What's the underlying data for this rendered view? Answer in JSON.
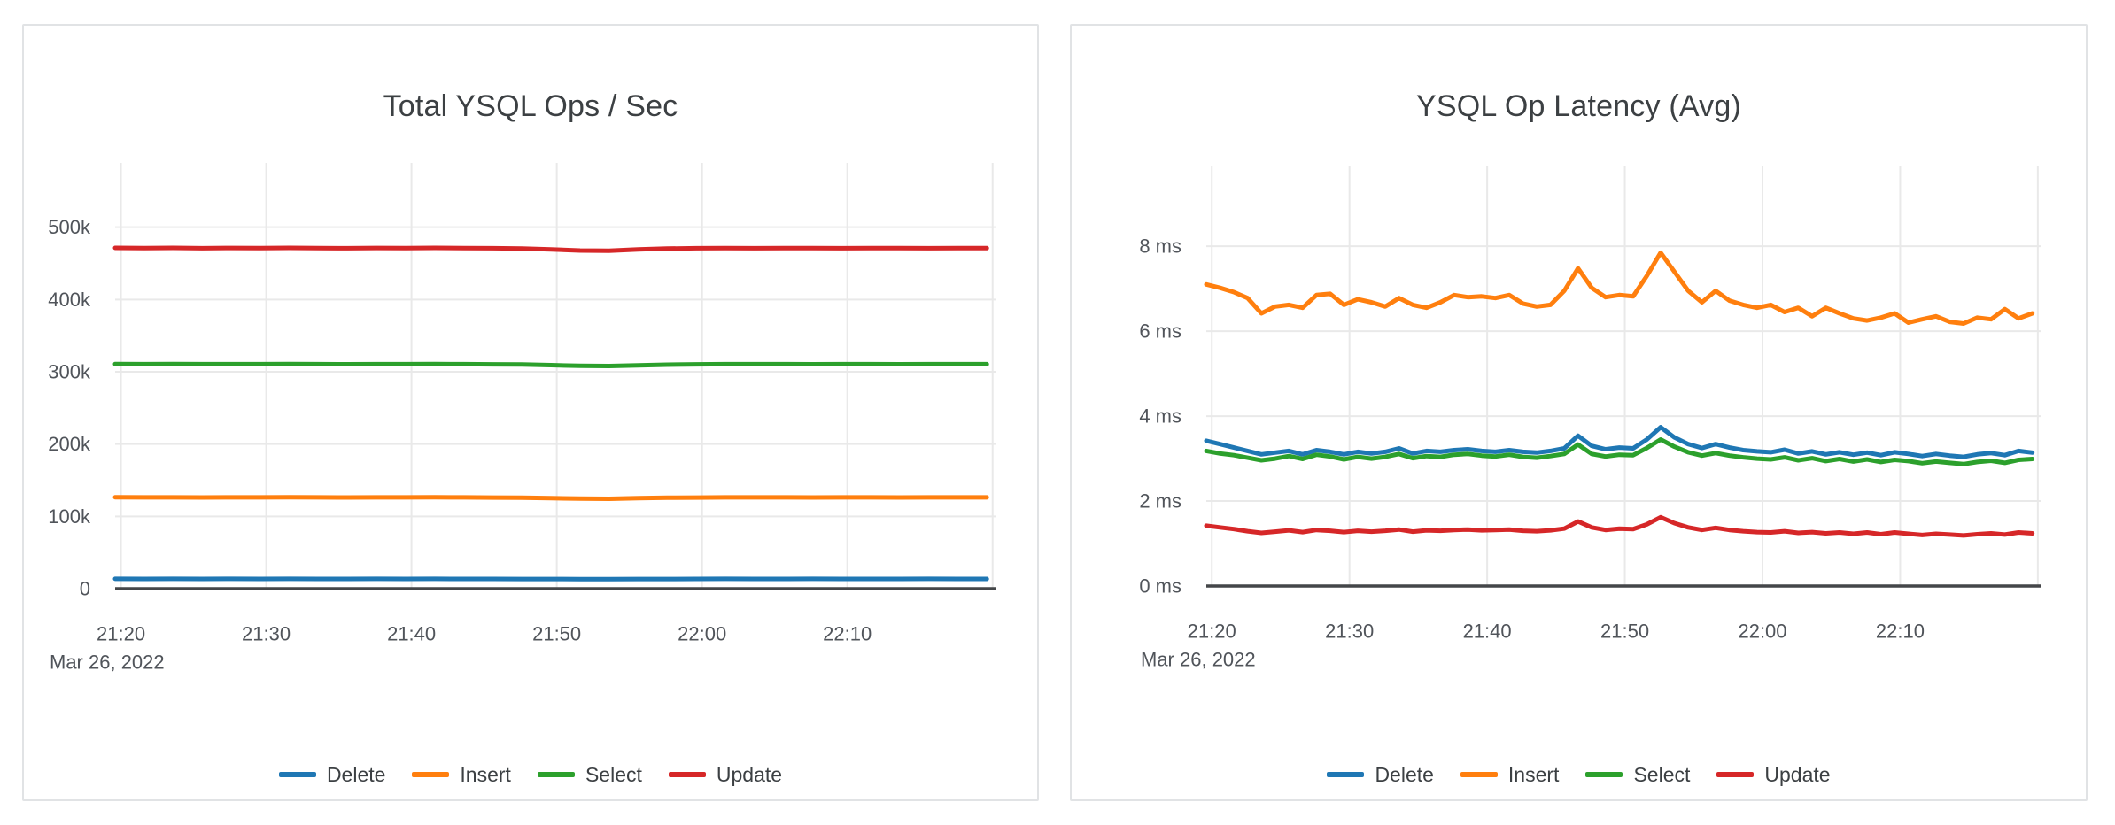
{
  "chart_data": [
    {
      "type": "line",
      "title": "Total YSQL Ops / Sec",
      "xlabel": "",
      "ylabel": "",
      "legend_position": "bottom-center",
      "grid": true,
      "x_axis": {
        "date_label": "Mar 26, 2022",
        "range_minutes": [
          0,
          60.6
        ],
        "step_minutes": 2,
        "ticks": [
          {
            "t": 0.4,
            "label": "21:20"
          },
          {
            "t": 10.4,
            "label": "21:30"
          },
          {
            "t": 20.4,
            "label": "21:40"
          },
          {
            "t": 30.4,
            "label": "21:50"
          },
          {
            "t": 40.4,
            "label": "22:00"
          },
          {
            "t": 50.4,
            "label": "22:10"
          },
          {
            "t": 60.4,
            "label": ""
          }
        ]
      },
      "y_axis": {
        "range": [
          0,
          589000
        ],
        "zero_line": true,
        "ticks": [
          {
            "v": 0,
            "label": "0"
          },
          {
            "v": 100000,
            "label": "100k"
          },
          {
            "v": 200000,
            "label": "200k"
          },
          {
            "v": 300000,
            "label": "300k"
          },
          {
            "v": 400000,
            "label": "400k"
          },
          {
            "v": 500000,
            "label": "500k"
          }
        ]
      },
      "series": [
        {
          "name": "Delete",
          "color": "#1f77b4",
          "values": [
            13600,
            13500,
            13550,
            13500,
            13600,
            13500,
            13550,
            13500,
            13450,
            13550,
            13500,
            13600,
            13500,
            13450,
            13400,
            13300,
            13150,
            13100,
            13300,
            13400,
            13500,
            13550,
            13500,
            13500,
            13550,
            13500,
            13450,
            13500,
            13550,
            13500,
            13500
          ]
        },
        {
          "name": "Insert",
          "color": "#ff7f0e",
          "values": [
            126400,
            126200,
            126300,
            126100,
            126300,
            126200,
            126400,
            126200,
            126100,
            126300,
            126200,
            126400,
            126200,
            126000,
            125800,
            125200,
            124500,
            124300,
            125100,
            125700,
            126000,
            126200,
            126300,
            126200,
            126100,
            126300,
            126200,
            126100,
            126300,
            126200,
            126200
          ]
        },
        {
          "name": "Select",
          "color": "#2ca02c",
          "values": [
            310800,
            310600,
            310700,
            310500,
            310600,
            310500,
            310700,
            310500,
            310400,
            310600,
            310500,
            310700,
            310500,
            310300,
            310000,
            309200,
            308200,
            308000,
            309000,
            309800,
            310300,
            310500,
            310600,
            310500,
            310400,
            310600,
            310500,
            310400,
            310600,
            310500,
            310500
          ]
        },
        {
          "name": "Update",
          "color": "#d62728",
          "values": [
            471500,
            471200,
            471400,
            471000,
            471300,
            471100,
            471400,
            471200,
            471000,
            471300,
            471100,
            471400,
            471200,
            471000,
            470600,
            469400,
            467800,
            467500,
            469200,
            470500,
            470900,
            471100,
            471000,
            471200,
            471100,
            471000,
            471200,
            471100,
            471000,
            471200,
            471100
          ]
        }
      ]
    },
    {
      "type": "line",
      "title": "YSQL Op Latency (Avg)",
      "xlabel": "",
      "ylabel": "",
      "legend_position": "bottom-center",
      "grid": true,
      "x_axis": {
        "date_label": "Mar 26, 2022",
        "range_minutes": [
          0,
          60.6
        ],
        "step_minutes": 1,
        "ticks": [
          {
            "t": 0.4,
            "label": "21:20"
          },
          {
            "t": 10.4,
            "label": "21:30"
          },
          {
            "t": 20.4,
            "label": "21:40"
          },
          {
            "t": 30.4,
            "label": "21:50"
          },
          {
            "t": 40.4,
            "label": "22:00"
          },
          {
            "t": 50.4,
            "label": "22:10"
          },
          {
            "t": 60.4,
            "label": ""
          }
        ]
      },
      "y_axis": {
        "range": [
          0,
          9.9
        ],
        "zero_line": true,
        "ticks": [
          {
            "v": 0,
            "label": "0 ms"
          },
          {
            "v": 2,
            "label": "2 ms"
          },
          {
            "v": 4,
            "label": "4 ms"
          },
          {
            "v": 6,
            "label": "6 ms"
          },
          {
            "v": 8,
            "label": "8 ms"
          }
        ]
      },
      "series": [
        {
          "name": "Delete",
          "color": "#1f77b4",
          "values": [
            3.42,
            3.34,
            3.26,
            3.18,
            3.1,
            3.14,
            3.18,
            3.1,
            3.2,
            3.16,
            3.1,
            3.16,
            3.12,
            3.16,
            3.24,
            3.12,
            3.18,
            3.16,
            3.2,
            3.22,
            3.18,
            3.16,
            3.2,
            3.16,
            3.14,
            3.18,
            3.24,
            3.54,
            3.3,
            3.22,
            3.26,
            3.24,
            3.45,
            3.74,
            3.5,
            3.34,
            3.25,
            3.34,
            3.26,
            3.2,
            3.17,
            3.15,
            3.21,
            3.12,
            3.17,
            3.1,
            3.15,
            3.09,
            3.14,
            3.08,
            3.15,
            3.11,
            3.06,
            3.11,
            3.07,
            3.04,
            3.1,
            3.13,
            3.08,
            3.18,
            3.14
          ]
        },
        {
          "name": "Insert",
          "color": "#ff7f0e",
          "values": [
            7.1,
            7.02,
            6.92,
            6.78,
            6.42,
            6.58,
            6.62,
            6.55,
            6.85,
            6.88,
            6.62,
            6.75,
            6.68,
            6.58,
            6.78,
            6.62,
            6.55,
            6.68,
            6.85,
            6.8,
            6.82,
            6.78,
            6.85,
            6.65,
            6.58,
            6.62,
            6.95,
            7.48,
            7.02,
            6.8,
            6.85,
            6.82,
            7.3,
            7.85,
            7.4,
            6.95,
            6.68,
            6.95,
            6.72,
            6.62,
            6.55,
            6.62,
            6.45,
            6.55,
            6.35,
            6.55,
            6.42,
            6.3,
            6.25,
            6.32,
            6.42,
            6.2,
            6.28,
            6.35,
            6.22,
            6.18,
            6.32,
            6.28,
            6.52,
            6.3,
            6.42
          ]
        },
        {
          "name": "Select",
          "color": "#2ca02c",
          "values": [
            3.18,
            3.12,
            3.08,
            3.02,
            2.96,
            3.0,
            3.06,
            2.99,
            3.09,
            3.05,
            2.98,
            3.04,
            3.0,
            3.04,
            3.11,
            3.01,
            3.06,
            3.04,
            3.09,
            3.11,
            3.07,
            3.05,
            3.09,
            3.04,
            3.02,
            3.06,
            3.11,
            3.33,
            3.11,
            3.05,
            3.09,
            3.08,
            3.25,
            3.45,
            3.28,
            3.15,
            3.07,
            3.13,
            3.07,
            3.03,
            3.0,
            2.98,
            3.03,
            2.96,
            3.01,
            2.94,
            2.99,
            2.93,
            2.98,
            2.92,
            2.97,
            2.94,
            2.89,
            2.93,
            2.9,
            2.87,
            2.92,
            2.95,
            2.9,
            2.97,
            2.99
          ]
        },
        {
          "name": "Update",
          "color": "#d62728",
          "values": [
            1.42,
            1.38,
            1.34,
            1.29,
            1.25,
            1.28,
            1.31,
            1.27,
            1.32,
            1.3,
            1.27,
            1.3,
            1.28,
            1.3,
            1.33,
            1.28,
            1.31,
            1.3,
            1.32,
            1.33,
            1.31,
            1.32,
            1.33,
            1.3,
            1.29,
            1.31,
            1.35,
            1.52,
            1.38,
            1.32,
            1.35,
            1.34,
            1.45,
            1.62,
            1.48,
            1.38,
            1.32,
            1.37,
            1.32,
            1.29,
            1.27,
            1.26,
            1.29,
            1.25,
            1.27,
            1.24,
            1.26,
            1.23,
            1.26,
            1.22,
            1.26,
            1.23,
            1.2,
            1.23,
            1.21,
            1.19,
            1.22,
            1.24,
            1.21,
            1.26,
            1.24
          ]
        }
      ]
    }
  ],
  "style": {
    "grid_color": "#e9e9e9",
    "zero_line_color": "#444649",
    "tick_color": "#50545a",
    "title_color": "#3c4043"
  }
}
